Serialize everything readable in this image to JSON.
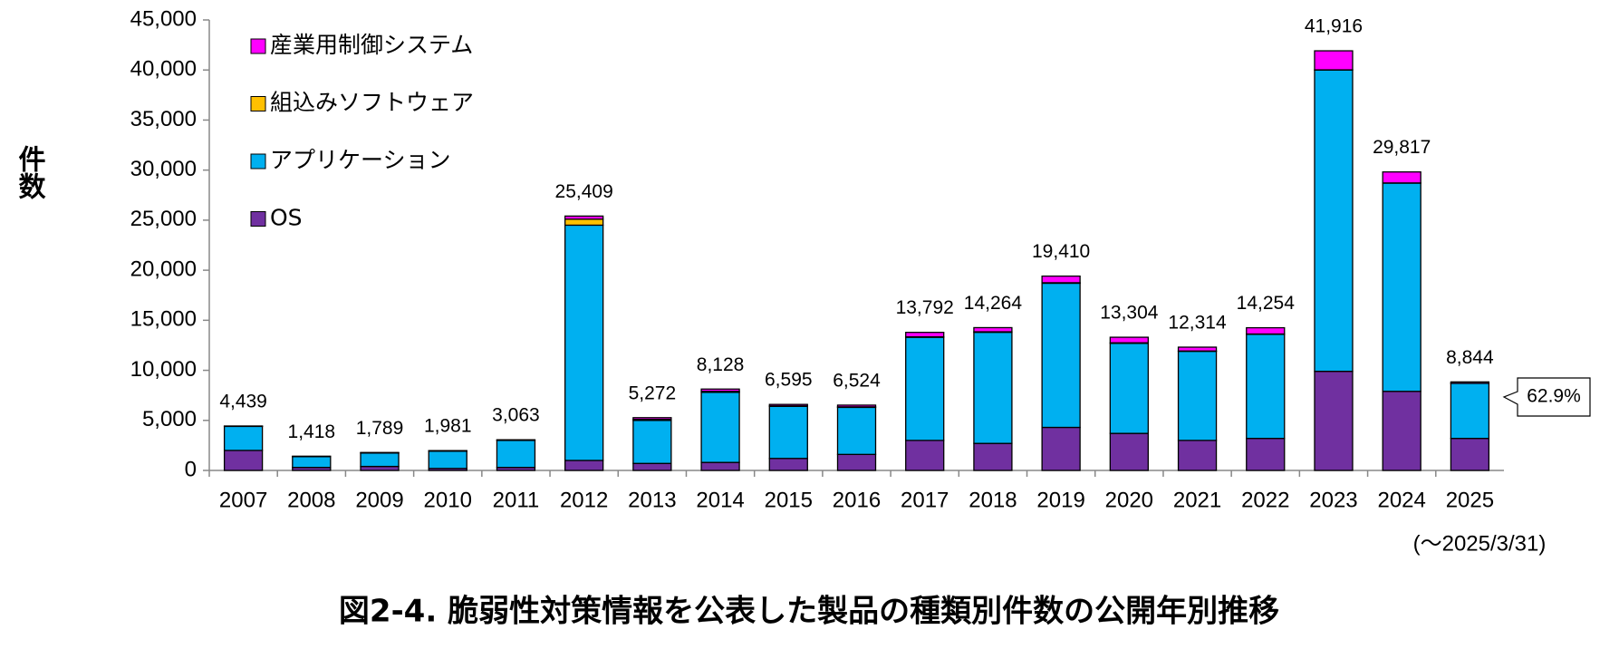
{
  "chart_data": {
    "type": "stacked_bar",
    "title": "図2-4. 脆弱性対策情報を公表した製品の種類別件数の公開年別推移",
    "y_label": "件数",
    "annotation": "(～2025/3/31)",
    "callout": "62.9%",
    "categories": [
      "2007",
      "2008",
      "2009",
      "2010",
      "2011",
      "2012",
      "2013",
      "2014",
      "2015",
      "2016",
      "2017",
      "2018",
      "2019",
      "2020",
      "2021",
      "2022",
      "2023",
      "2024",
      "2025"
    ],
    "series": [
      {
        "name": "OS",
        "color": "#7030a0",
        "values": [
          2000,
          300,
          400,
          200,
          300,
          1000,
          700,
          800,
          1200,
          1600,
          3000,
          2700,
          4300,
          3700,
          3000,
          3200,
          9900,
          7900,
          3200
        ]
      },
      {
        "name": "アプリケーション",
        "color": "#00b0f0",
        "values": [
          2400,
          1080,
          1340,
          1730,
          2700,
          23500,
          4300,
          7000,
          5200,
          4700,
          10300,
          11100,
          14400,
          9000,
          8900,
          10400,
          30100,
          20800,
          5500
        ]
      },
      {
        "name": "組込みソフトウェア",
        "color": "#ffc000",
        "values": [
          20,
          20,
          30,
          30,
          40,
          600,
          100,
          100,
          50,
          50,
          50,
          50,
          50,
          50,
          30,
          30,
          16,
          17,
          10
        ]
      },
      {
        "name": "産業用制御システム",
        "color": "#ff00ff",
        "values": [
          19,
          18,
          19,
          21,
          23,
          309,
          172,
          228,
          145,
          174,
          442,
          414,
          660,
          554,
          384,
          624,
          1900,
          1100,
          134
        ]
      }
    ],
    "totals": [
      4439,
      1418,
      1789,
      1981,
      3063,
      25409,
      5272,
      8128,
      6595,
      6524,
      13792,
      14264,
      19410,
      13304,
      12314,
      14254,
      41916,
      29817,
      8844
    ],
    "total_labels": [
      "4,439",
      "1,418",
      "1,789",
      "1,981",
      "3,063",
      "25,409",
      "5,272",
      "8,128",
      "6,595",
      "6,524",
      "13,792",
      "14,264",
      "19,410",
      "13,304",
      "12,314",
      "14,254",
      "41,916",
      "29,817",
      "8,844"
    ],
    "ylim": [
      0,
      45000
    ],
    "yticks": [
      0,
      {
        "value": 5000,
        "label": "5,000"
      },
      {
        "value": 10000,
        "label": "10,000"
      },
      {
        "value": 15000,
        "label": "15,000"
      },
      {
        "value": 20000,
        "label": "20,000"
      },
      {
        "value": 25000,
        "label": "25,000"
      },
      {
        "value": 30000,
        "label": "30,000"
      },
      {
        "value": 35000,
        "label": "35,000"
      },
      {
        "value": 40000,
        "label": "40,000"
      },
      {
        "value": 45000,
        "label": "45,000"
      }
    ]
  }
}
